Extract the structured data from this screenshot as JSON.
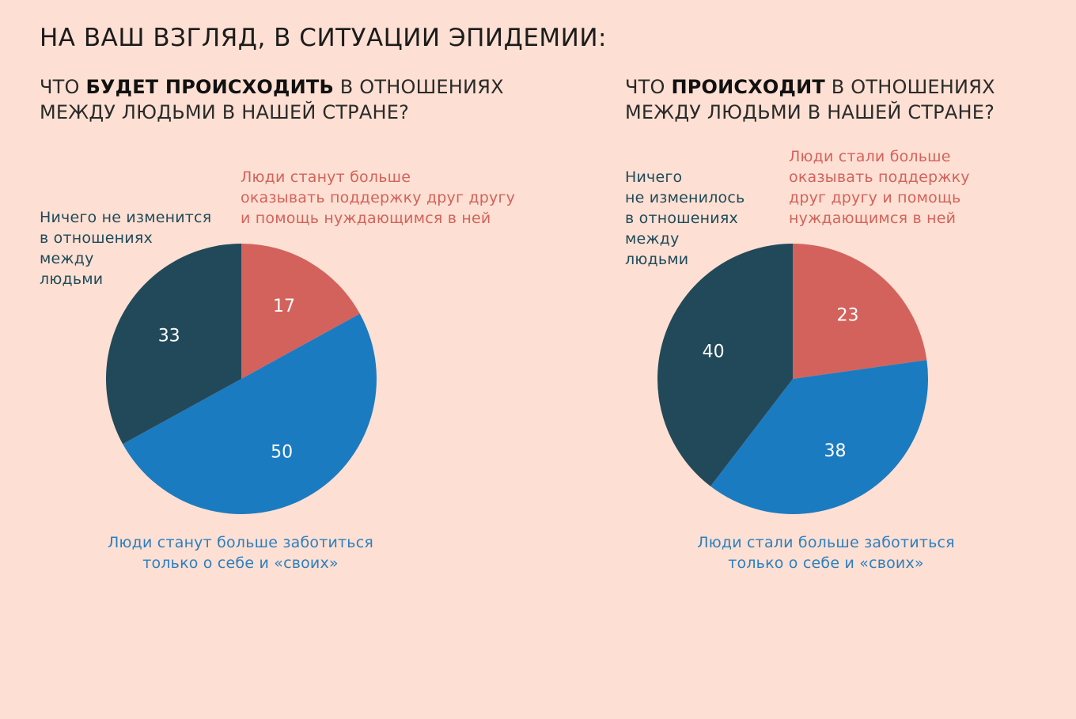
{
  "title": "НА ВАШ ВЗГЛЯД, В СИТУАЦИИ ЭПИДЕМИИ:",
  "left": {
    "q_pre": "ЧТО ",
    "q_bold": "БУДЕТ ПРОИСХОДИТЬ",
    "q_post": " В ОТНОШЕНИЯХ",
    "q_line2": "МЕЖДУ ЛЮДЬМИ В НАШЕЙ СТРАНЕ?",
    "label_support": [
      "Люди станут больше",
      "оказывать поддержку друг другу",
      "и помощь нуждающимся в ней"
    ],
    "label_nothing": [
      "Ничего не изменится",
      "в отношениях",
      "между",
      "людьми"
    ],
    "label_self": [
      "Люди станут больше заботиться",
      "только о себе и «своих»"
    ],
    "note": [
      "",
      "",
      "",
      "",
      ""
    ]
  },
  "right": {
    "q_pre": "ЧТО ",
    "q_bold": "ПРОИСХОДИТ",
    "q_post": " В ОТНОШЕНИЯХ",
    "q_line2": "МЕЖДУ ЛЮДЬМИ В НАШЕЙ СТРАНЕ?",
    "label_support": [
      "Люди стали больше",
      "оказывать поддержку",
      "друг другу и помощь",
      "нуждающимся в ней"
    ],
    "label_nothing": [
      "Ничего",
      "не изменилось",
      "в отношениях",
      "между",
      "людьми"
    ],
    "label_self": [
      "Люди стали больше заботиться",
      "только о себе и «своих»"
    ],
    "note": [
      "",
      "",
      "",
      "",
      ""
    ]
  },
  "colors": {
    "support": "#d4625c",
    "self": "#1b7bc1",
    "nothing": "#22495a",
    "background": "#fde0d3"
  },
  "chart_data": [
    {
      "type": "pie",
      "unit": "%",
      "categories": [
        "Люди станут больше оказывать поддержку друг другу и помощь нуждающимся в ней",
        "Люди станут больше заботиться только о себе и «своих»",
        "Ничего не изменится в отношениях между людьми"
      ],
      "values": [
        17,
        50,
        33
      ]
    },
    {
      "type": "pie",
      "unit": "%",
      "categories": [
        "Люди стали больше оказывать поддержку друг другу и помощь нуждающимся в ней",
        "Люди стали больше заботиться только о себе и «своих»",
        "Ничего не изменилось в отношениях между людьми"
      ],
      "values": [
        23,
        38,
        40
      ]
    }
  ]
}
